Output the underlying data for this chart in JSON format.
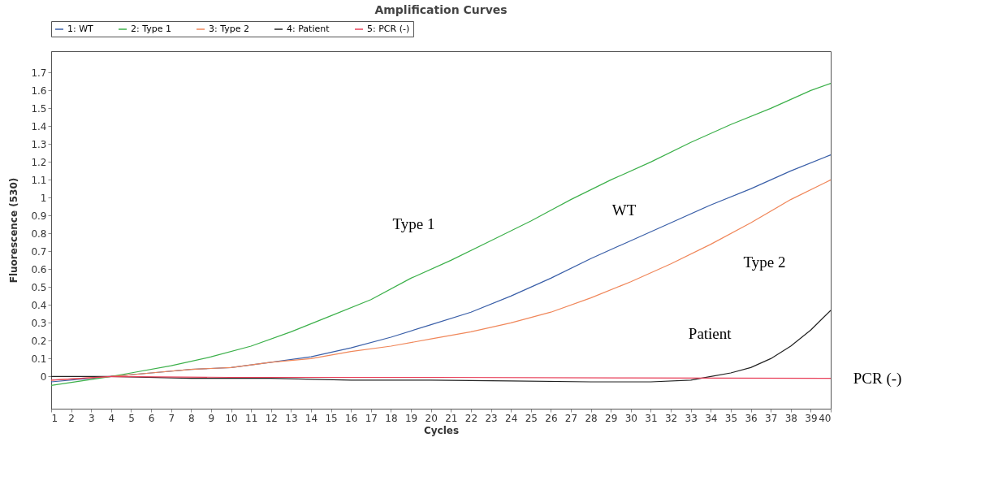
{
  "chart_data": {
    "type": "line",
    "title": "Amplification Curves",
    "xlabel": "Cycles",
    "ylabel": "Fluorescence (530)",
    "xlim": [
      1,
      40
    ],
    "ylim": [
      -0.18,
      1.82
    ],
    "xticks": [
      1,
      2,
      3,
      4,
      5,
      6,
      7,
      8,
      9,
      10,
      11,
      12,
      13,
      14,
      15,
      16,
      17,
      18,
      19,
      20,
      21,
      22,
      23,
      24,
      25,
      26,
      27,
      28,
      29,
      30,
      31,
      32,
      33,
      34,
      35,
      36,
      37,
      38,
      39,
      40
    ],
    "yticks": [
      0,
      0.1,
      0.2,
      0.3,
      0.4,
      0.5,
      0.6,
      0.7,
      0.8,
      0.9,
      1,
      1.1,
      1.2,
      1.3,
      1.4,
      1.5,
      1.6,
      1.7
    ],
    "grid": false,
    "legend": "top",
    "marker": "none",
    "line_style": "solid",
    "series": [
      {
        "name": "1: WT",
        "color": "#3a5fa8",
        "x": [
          1,
          4,
          6,
          8,
          10,
          12,
          14,
          16,
          18,
          20,
          22,
          24,
          26,
          28,
          30,
          32,
          34,
          36,
          38,
          40
        ],
        "values": [
          -0.03,
          0,
          0.02,
          0.04,
          0.05,
          0.08,
          0.11,
          0.16,
          0.22,
          0.29,
          0.36,
          0.45,
          0.55,
          0.66,
          0.76,
          0.86,
          0.96,
          1.05,
          1.15,
          1.24
        ]
      },
      {
        "name": "2: Type 1",
        "color": "#3cb04a",
        "x": [
          1,
          4,
          5,
          7,
          9,
          11,
          13,
          15,
          17,
          19,
          21,
          23,
          25,
          27,
          29,
          31,
          33,
          35,
          37,
          39,
          40
        ],
        "values": [
          -0.05,
          0,
          0.02,
          0.06,
          0.11,
          0.17,
          0.25,
          0.34,
          0.43,
          0.55,
          0.65,
          0.76,
          0.87,
          0.99,
          1.1,
          1.2,
          1.31,
          1.41,
          1.5,
          1.6,
          1.64
        ]
      },
      {
        "name": "3: Type 2",
        "color": "#f0875a",
        "x": [
          1,
          4,
          6,
          8,
          10,
          12,
          14,
          16,
          18,
          20,
          22,
          24,
          26,
          28,
          30,
          32,
          34,
          36,
          38,
          40
        ],
        "values": [
          -0.02,
          0,
          0.02,
          0.04,
          0.05,
          0.08,
          0.1,
          0.14,
          0.17,
          0.21,
          0.25,
          0.3,
          0.36,
          0.44,
          0.53,
          0.63,
          0.74,
          0.86,
          0.99,
          1.1
        ]
      },
      {
        "name": "4: Patient",
        "color": "#222222",
        "x": [
          1,
          3.5,
          4,
          8,
          12,
          16,
          20,
          24,
          28,
          31,
          33,
          34,
          35,
          36,
          37,
          38,
          39,
          40
        ],
        "values": [
          0,
          0,
          0,
          -0.01,
          -0.01,
          -0.02,
          -0.02,
          -0.025,
          -0.03,
          -0.03,
          -0.02,
          0,
          0.02,
          0.05,
          0.1,
          0.17,
          0.26,
          0.37
        ]
      },
      {
        "name": "5: PCR (-)",
        "color": "#e8405a",
        "x": [
          1,
          4,
          10,
          20,
          30,
          40
        ],
        "values": [
          -0.02,
          0,
          -0.005,
          -0.005,
          -0.008,
          -0.01
        ]
      }
    ],
    "annotations": [
      "Type 1",
      "WT",
      "Type 2",
      "Patient",
      "PCR (-)"
    ]
  }
}
